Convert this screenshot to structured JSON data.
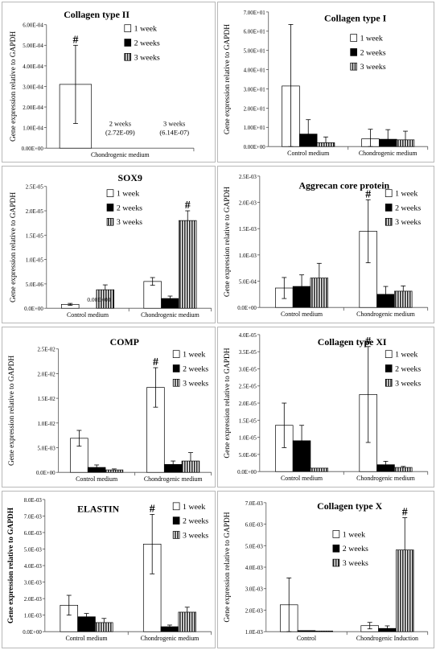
{
  "chart_data": [
    {
      "type": "bar",
      "title": "Collagen type II",
      "ylabel": "Gene expression relative to GAPDH",
      "yticks": [
        "0.00E+00",
        "1.00E-04",
        "2.00E-04",
        "3.00E-04",
        "4.00E-04",
        "5.00E-04",
        "6.00E-04"
      ],
      "ylim": [
        0,
        0.0006
      ],
      "categories": [
        "Chondrogenic medium"
      ],
      "legend": [
        "1 week",
        "2 weeks",
        "3 weeks"
      ],
      "series": [
        {
          "name": "1 week",
          "values": [
            0.00031
          ],
          "errors": [
            0.00019
          ]
        },
        {
          "name": "2 weeks",
          "values": [
            2.72e-09
          ],
          "errors": [
            0
          ]
        },
        {
          "name": "3 weeks",
          "values": [
            6.14e-07
          ],
          "errors": [
            0
          ]
        }
      ],
      "annotations": [
        {
          "text": "#",
          "series": 0,
          "category": 0
        },
        {
          "text": "2 weeks",
          "series": 1,
          "category": 0,
          "line": 0
        },
        {
          "text": "(2.72E-09)",
          "series": 1,
          "category": 0,
          "line": 1
        },
        {
          "text": "3 weeks",
          "series": 2,
          "category": 0,
          "line": 0
        },
        {
          "text": "(6.14E-07)",
          "series": 2,
          "category": 0,
          "line": 1
        }
      ]
    },
    {
      "type": "bar",
      "title": "Collagen type I",
      "ylabel": "Gene expression relative to GAPDH",
      "yticks": [
        "0.00E+00",
        "1.00E+01",
        "2.00E+01",
        "3.00E+01",
        "4.00E+01",
        "5.00E+01",
        "6.00E+01",
        "7.00E+01"
      ],
      "ylim": [
        0,
        70
      ],
      "categories": [
        "Control medium",
        "Chondrogenic medium"
      ],
      "legend": [
        "1 week",
        "2 weeks",
        "3 weeks"
      ],
      "series": [
        {
          "name": "1 week",
          "values": [
            31.5,
            4.0
          ],
          "errors": [
            32,
            5
          ]
        },
        {
          "name": "2 weeks",
          "values": [
            6.5,
            3.8
          ],
          "errors": [
            7.5,
            5
          ]
        },
        {
          "name": "3 weeks",
          "values": [
            2.0,
            3.5
          ],
          "errors": [
            3,
            4.5
          ]
        }
      ],
      "annotations": []
    },
    {
      "type": "bar",
      "title": "SOX9",
      "ylabel": "Gene expression relative to GAPDH",
      "yticks": [
        "0.0E+00",
        "5.0E-06",
        "1.0E-05",
        "1.5E-05",
        "2.0E-05",
        "2.5E-05"
      ],
      "ylim": [
        0,
        2.5e-05
      ],
      "categories": [
        "Control medium",
        "Chondrogenic medium"
      ],
      "legend": [
        "1 week",
        "2 weeks",
        "3 weeks"
      ],
      "series": [
        {
          "name": "1 week",
          "values": [
            8e-07,
            5.5e-06
          ],
          "errors": [
            2e-07,
            8e-07
          ]
        },
        {
          "name": "2 weeks",
          "values": [
            0,
            2e-06
          ],
          "errors": [
            0,
            5e-07
          ]
        },
        {
          "name": "3 weeks",
          "values": [
            3.8e-06,
            1.8e-05
          ],
          "errors": [
            1e-06,
            2e-06
          ]
        }
      ],
      "annotations": [
        {
          "text": "0.00E+00",
          "series": 1,
          "category": 0
        },
        {
          "text": "#",
          "series": 2,
          "category": 1
        }
      ]
    },
    {
      "type": "bar",
      "title": "Aggrecan core protein",
      "ylabel": "Gene expression relative to GAPDH",
      "yticks": [
        "0.0E+00",
        "5.0E-04",
        "1.0E-03",
        "1.5E-03",
        "2.0E-03",
        "2.5E-03"
      ],
      "ylim": [
        0,
        0.0025
      ],
      "categories": [
        "Control medium",
        "Chondrogenic medium"
      ],
      "legend": [
        "1 week",
        "2 weeks",
        "3 weeks"
      ],
      "series": [
        {
          "name": "1 week",
          "values": [
            0.00037,
            0.00145
          ],
          "errors": [
            0.0002,
            0.0006
          ]
        },
        {
          "name": "2 weeks",
          "values": [
            0.0004,
            0.00025
          ],
          "errors": [
            0.00022,
            0.00015
          ]
        },
        {
          "name": "3 weeks",
          "values": [
            0.00056,
            0.00031
          ],
          "errors": [
            0.00028,
            0.0001
          ]
        }
      ],
      "annotations": [
        {
          "text": "#",
          "series": 0,
          "category": 1
        }
      ]
    },
    {
      "type": "bar",
      "title": "COMP",
      "ylabel": "Gene expression relative to GAPDH",
      "yticks": [
        "0.0E+00",
        "5.0E-03",
        "1.0E-02",
        "1.5E-02",
        "2.0E-02",
        "2.5E-02"
      ],
      "ylim": [
        0,
        0.025
      ],
      "categories": [
        "Control medium",
        "Chondrogenic medium"
      ],
      "legend": [
        "1 week",
        "2 weeks",
        "3 weeks"
      ],
      "series": [
        {
          "name": "1 week",
          "values": [
            0.0069,
            0.0172
          ],
          "errors": [
            0.0016,
            0.004
          ]
        },
        {
          "name": "2 weeks",
          "values": [
            0.001,
            0.0016
          ],
          "errors": [
            0.0005,
            0.0007
          ]
        },
        {
          "name": "3 weeks",
          "values": [
            0.0005,
            0.0023
          ],
          "errors": [
            0.0002,
            0.0017
          ]
        }
      ],
      "annotations": [
        {
          "text": "#",
          "series": 0,
          "category": 1
        }
      ]
    },
    {
      "type": "bar",
      "title": "Collagen type XI",
      "ylabel": "Gene expression relative to GAPDH",
      "yticks": [
        "0.0E+00",
        "5.0E-06",
        "1.0E-05",
        "1.5E-05",
        "2.0E-05",
        "2.5E-05",
        "3.0E-05",
        "3.5E-05",
        "4.0E-05"
      ],
      "ylim": [
        0,
        4e-05
      ],
      "categories": [
        "Control medium",
        "Chondrogenic medium"
      ],
      "legend": [
        "1 week",
        "2 weeks",
        "3 weeks"
      ],
      "series": [
        {
          "name": "1 week",
          "values": [
            1.35e-05,
            2.25e-05
          ],
          "errors": [
            6.5e-06,
            1.4e-05
          ]
        },
        {
          "name": "2 weeks",
          "values": [
            9e-06,
            2e-06
          ],
          "errors": [
            4.5e-06,
            1e-06
          ]
        },
        {
          "name": "3 weeks",
          "values": [
            1e-06,
            1.2e-06
          ],
          "errors": [
            0,
            3e-07
          ]
        }
      ],
      "annotations": [
        {
          "text": "#",
          "series": 0,
          "category": 1
        }
      ]
    },
    {
      "type": "bar",
      "title": "ELASTIN",
      "ylabel": "Gene expression relative to GAPDH",
      "yticks": [
        "0.0E+00",
        "1.0E-03",
        "2.0E-03",
        "3.0E-03",
        "4.0E-03",
        "5.0E-03",
        "6.0E-03",
        "7.0E-03",
        "8.0E-03"
      ],
      "ylim": [
        0,
        0.008
      ],
      "categories": [
        "Control medium",
        "Chondrogenic medium"
      ],
      "legend": [
        "1 week",
        "2 weeks",
        "3 weeks"
      ],
      "series": [
        {
          "name": "1 week",
          "values": [
            0.0016,
            0.0053
          ],
          "errors": [
            0.0006,
            0.0018
          ]
        },
        {
          "name": "2 weeks",
          "values": [
            0.0009,
            0.0003
          ],
          "errors": [
            0.0002,
            0.0001
          ]
        },
        {
          "name": "3 weeks",
          "values": [
            0.00055,
            0.00118
          ],
          "errors": [
            0.00025,
            0.0003
          ]
        }
      ],
      "annotations": [
        {
          "text": "#",
          "series": 0,
          "category": 1
        }
      ]
    },
    {
      "type": "bar",
      "title": "Collagen type X",
      "ylabel": "Gene expression relative to GAPDH",
      "yticks": [
        "1.0E-03",
        "2.0E-03",
        "3.0E-03",
        "4.0E-03",
        "5.0E-03",
        "6.0E-03",
        "7.0E-03"
      ],
      "ylim": [
        0.001,
        0.007
      ],
      "categories": [
        "Control",
        "Chondrogenic Induction"
      ],
      "legend": [
        "1 week",
        "2 weeks",
        "3 weeks"
      ],
      "series": [
        {
          "name": "1 week",
          "values": [
            0.00225,
            0.00128
          ],
          "errors": [
            0.00125,
            0.00015
          ]
        },
        {
          "name": "2 weeks",
          "values": [
            0.00105,
            0.00115
          ],
          "errors": [
            0,
            0.00012
          ]
        },
        {
          "name": "3 weeks",
          "values": [
            0.00103,
            0.0048
          ],
          "errors": [
            0,
            0.0015
          ]
        }
      ],
      "annotations": [
        {
          "text": "#",
          "series": 2,
          "category": 1
        }
      ]
    }
  ]
}
